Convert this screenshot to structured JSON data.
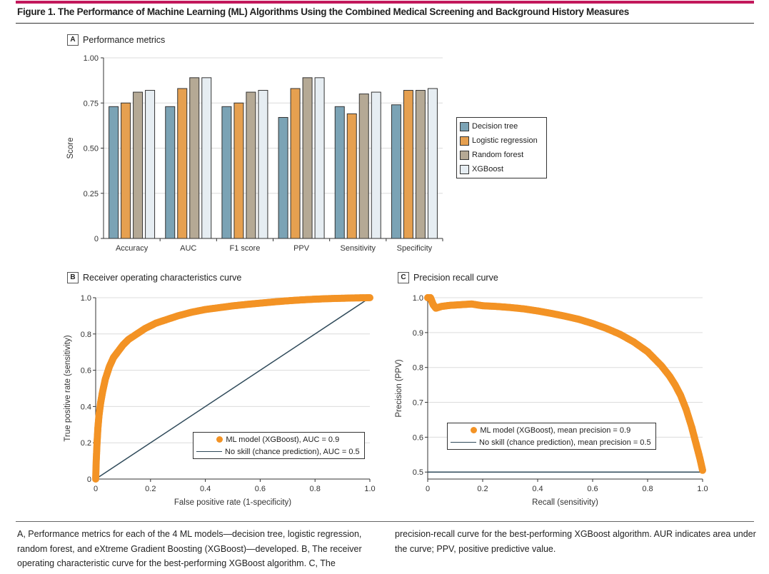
{
  "figure": {
    "title": "Figure 1. The Performance of Machine Learning (ML) Algorithms Using the Combined Medical Screening and Background History Measures",
    "accent_color": "#c2185b",
    "caption_left": "A, Performance metrics for each of the 4 ML models—decision tree, logistic regression, random forest, and eXtreme Gradient Boosting (XGBoost)—developed. B, The receiver operating characteristic curve for the best-performing XGBoost algorithm. C, The",
    "caption_right": "precision-recall curve for the best-performing XGBoost algorithm. AUR indicates area under the curve; PPV, positive predictive value."
  },
  "panels": {
    "a": {
      "letter": "A",
      "title": "Performance metrics"
    },
    "b": {
      "letter": "B",
      "title": "Receiver operating characteristics curve"
    },
    "c": {
      "letter": "C",
      "title": "Precision recall curve"
    }
  },
  "chart_data": [
    {
      "type": "bar",
      "title": "Performance metrics",
      "xlabel": "",
      "ylabel": "Score",
      "ylim": [
        0,
        1.0
      ],
      "yticks": [
        0,
        0.25,
        0.5,
        0.75,
        1.0
      ],
      "ytick_labels": [
        "0",
        "0.25",
        "0.50",
        "0.75",
        "1.00"
      ],
      "grid": true,
      "legend_position": "right",
      "categories": [
        "Accuracy",
        "AUC",
        "F1 score",
        "PPV",
        "Sensitivity",
        "Specificity"
      ],
      "series": [
        {
          "name": "Decision tree",
          "color": "#7ba3b5",
          "values": [
            0.73,
            0.73,
            0.73,
            0.67,
            0.73,
            0.74
          ]
        },
        {
          "name": "Logistic regression",
          "color": "#e6a050",
          "values": [
            0.75,
            0.83,
            0.75,
            0.83,
            0.69,
            0.82
          ]
        },
        {
          "name": "Random forest",
          "color": "#b5a995",
          "values": [
            0.81,
            0.89,
            0.81,
            0.89,
            0.8,
            0.82
          ]
        },
        {
          "name": "XGBoost",
          "color": "#e6edf2",
          "values": [
            0.82,
            0.89,
            0.82,
            0.89,
            0.81,
            0.83
          ]
        }
      ]
    },
    {
      "type": "scatter",
      "title": "Receiver operating characteristics curve",
      "xlabel": "False positive rate (1-specificity)",
      "ylabel": "True positive rate (sensitivity)",
      "xlim": [
        0,
        1.0
      ],
      "ylim": [
        0,
        1.0
      ],
      "xticks": [
        0,
        0.2,
        0.4,
        0.6,
        0.8,
        1.0
      ],
      "xtick_labels": [
        "0",
        "0.2",
        "0.4",
        "0.6",
        "0.8",
        "1.0"
      ],
      "yticks": [
        0,
        0.2,
        0.4,
        0.6,
        0.8,
        1.0
      ],
      "ytick_labels": [
        "0",
        "0.2",
        "0.4",
        "0.6",
        "0.8",
        "1.0"
      ],
      "grid": true,
      "legend_position": "bottom-right",
      "series": [
        {
          "name": "ML model (XGBoost), AUC = 0.9",
          "color": "#f39325",
          "style": "points",
          "x": [
            0,
            0.002,
            0.005,
            0.008,
            0.012,
            0.018,
            0.025,
            0.035,
            0.05,
            0.065,
            0.08,
            0.1,
            0.12,
            0.15,
            0.18,
            0.22,
            0.26,
            0.3,
            0.35,
            0.4,
            0.45,
            0.5,
            0.55,
            0.6,
            0.65,
            0.7,
            0.75,
            0.8,
            0.85,
            0.9,
            0.95,
            1.0
          ],
          "y": [
            0,
            0.1,
            0.2,
            0.28,
            0.35,
            0.42,
            0.48,
            0.55,
            0.62,
            0.67,
            0.7,
            0.74,
            0.77,
            0.8,
            0.83,
            0.86,
            0.88,
            0.9,
            0.92,
            0.935,
            0.945,
            0.955,
            0.963,
            0.97,
            0.977,
            0.983,
            0.988,
            0.992,
            0.995,
            0.997,
            0.999,
            1.0
          ]
        },
        {
          "name": "No skill (chance prediction), AUC = 0.5",
          "color": "#2f4a5a",
          "style": "line",
          "x": [
            0,
            1.0
          ],
          "y": [
            0,
            1.0
          ]
        }
      ],
      "legend_entries": [
        "ML model (XGBoost), AUC = 0.9",
        "No skill (chance prediction), AUC = 0.5"
      ]
    },
    {
      "type": "scatter",
      "title": "Precision recall curve",
      "xlabel": "Recall (sensitivity)",
      "ylabel": "Precision (PPV)",
      "xlim": [
        0,
        1.0
      ],
      "ylim": [
        0.48,
        1.0
      ],
      "xticks": [
        0,
        0.2,
        0.4,
        0.6,
        0.8,
        1.0
      ],
      "xtick_labels": [
        "0",
        "0.2",
        "0.4",
        "0.6",
        "0.8",
        "1.0"
      ],
      "yticks": [
        0.5,
        0.6,
        0.7,
        0.8,
        0.9,
        1.0
      ],
      "ytick_labels": [
        "0.5",
        "0.6",
        "0.7",
        "0.8",
        "0.9",
        "1.0"
      ],
      "grid": true,
      "legend_position": "bottom-left",
      "series": [
        {
          "name": "ML model (XGBoost), mean precision = 0.9",
          "color": "#f39325",
          "style": "points",
          "x": [
            0,
            0.005,
            0.01,
            0.015,
            0.02,
            0.025,
            0.03,
            0.05,
            0.08,
            0.12,
            0.16,
            0.2,
            0.25,
            0.3,
            0.35,
            0.4,
            0.45,
            0.5,
            0.55,
            0.6,
            0.65,
            0.7,
            0.75,
            0.8,
            0.85,
            0.88,
            0.9,
            0.92,
            0.94,
            0.96,
            0.97,
            0.98,
            0.99,
            1.0
          ],
          "y": [
            1.0,
            1.0,
            1.0,
            0.99,
            0.98,
            0.975,
            0.97,
            0.975,
            0.978,
            0.98,
            0.982,
            0.977,
            0.975,
            0.972,
            0.968,
            0.962,
            0.955,
            0.947,
            0.938,
            0.926,
            0.912,
            0.895,
            0.873,
            0.845,
            0.805,
            0.775,
            0.75,
            0.72,
            0.68,
            0.63,
            0.6,
            0.57,
            0.54,
            0.505
          ]
        },
        {
          "name": "No skill (chance prediction), mean precision = 0.5",
          "color": "#2f4a5a",
          "style": "line",
          "x": [
            0,
            1.0
          ],
          "y": [
            0.5,
            0.5
          ]
        }
      ],
      "legend_entries": [
        "ML model (XGBoost), mean precision = 0.9",
        "No skill (chance prediction), mean precision = 0.5"
      ]
    }
  ]
}
